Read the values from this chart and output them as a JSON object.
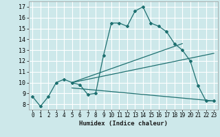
{
  "xlabel": "Humidex (Indice chaleur)",
  "bg_color": "#cde8ea",
  "grid_color": "#ffffff",
  "line_color": "#1e7070",
  "xlim": [
    -0.5,
    23.5
  ],
  "ylim": [
    7.5,
    17.5
  ],
  "xticks": [
    0,
    1,
    2,
    3,
    4,
    5,
    6,
    7,
    8,
    9,
    10,
    11,
    12,
    13,
    14,
    15,
    16,
    17,
    18,
    19,
    20,
    21,
    22,
    23
  ],
  "yticks": [
    8,
    9,
    10,
    11,
    12,
    13,
    14,
    15,
    16,
    17
  ],
  "series1_x": [
    0,
    1,
    2,
    3,
    4,
    5,
    6,
    7,
    8,
    9,
    10,
    11,
    12,
    13,
    14,
    15,
    16,
    17,
    18,
    19,
    20,
    21,
    22,
    23
  ],
  "series1_y": [
    8.7,
    7.8,
    8.7,
    10.0,
    10.3,
    10.0,
    9.8,
    8.9,
    9.0,
    12.5,
    15.5,
    15.5,
    15.2,
    16.6,
    17.0,
    15.5,
    15.2,
    14.7,
    13.6,
    13.0,
    12.0,
    9.7,
    8.3,
    8.3
  ],
  "line2_x": [
    5,
    19
  ],
  "line2_y": [
    10.0,
    13.6
  ],
  "line3_x": [
    5,
    23
  ],
  "line3_y": [
    10.0,
    12.7
  ],
  "line4_x": [
    5,
    23
  ],
  "line4_y": [
    9.5,
    8.3
  ]
}
